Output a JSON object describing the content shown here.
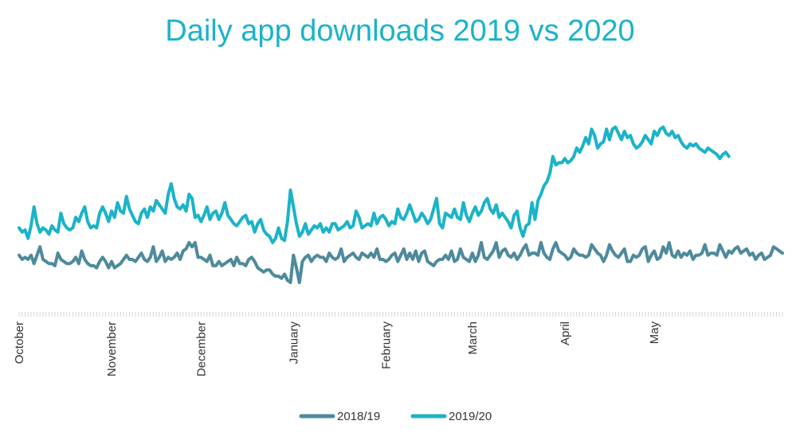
{
  "chart_data": {
    "type": "line",
    "title": "Daily app downloads 2019 vs 2020",
    "xlabel": "",
    "ylabel": "",
    "grid": false,
    "legend_position": "bottom-center",
    "x_axis": {
      "unit": "day",
      "tick_labels": [
        "October",
        "November",
        "December",
        "January",
        "February",
        "March",
        "April",
        "May"
      ],
      "tick_day_index": [
        0,
        31,
        61,
        92,
        123,
        152,
        183,
        213
      ]
    },
    "ylim": [
      0,
      100
    ],
    "series": [
      {
        "name": "2018/19",
        "color": "#4d8a9c",
        "values": [
          27,
          25,
          26,
          25,
          27,
          23,
          27,
          31,
          25,
          24,
          23,
          23,
          22,
          28,
          25,
          24,
          23,
          23,
          24,
          26,
          23,
          29,
          25,
          23,
          22,
          22,
          21,
          24,
          26,
          24,
          21,
          24,
          21,
          22,
          23,
          25,
          27,
          25,
          25,
          24,
          26,
          28,
          25,
          24,
          26,
          31,
          24,
          26,
          29,
          24,
          26,
          25,
          26,
          28,
          25,
          29,
          30,
          33,
          31,
          33,
          26,
          26,
          25,
          24,
          27,
          22,
          22,
          24,
          22,
          23,
          24,
          25,
          22,
          26,
          23,
          23,
          22,
          25,
          26,
          24,
          21,
          20,
          19,
          20,
          20,
          18,
          17,
          17,
          16,
          18,
          15,
          14,
          27,
          21,
          14,
          24,
          26,
          27,
          24,
          26,
          27,
          26,
          26,
          24,
          28,
          26,
          25,
          26,
          30,
          24,
          26,
          27,
          28,
          26,
          25,
          28,
          27,
          26,
          28,
          26,
          30,
          25,
          25,
          24,
          25,
          27,
          28,
          24,
          27,
          30,
          25,
          28,
          25,
          29,
          24,
          28,
          29,
          24,
          23,
          22,
          24,
          25,
          25,
          27,
          25,
          29,
          24,
          25,
          30,
          26,
          25,
          24,
          28,
          24,
          27,
          33,
          26,
          25,
          27,
          29,
          33,
          26,
          29,
          30,
          27,
          26,
          28,
          25,
          27,
          30,
          32,
          27,
          28,
          28,
          27,
          33,
          28,
          26,
          25,
          30,
          33,
          29,
          28,
          27,
          25,
          26,
          30,
          28,
          27,
          27,
          26,
          27,
          32,
          30,
          28,
          27,
          24,
          27,
          32,
          29,
          27,
          26,
          28,
          30,
          24,
          24,
          27,
          26,
          27,
          30,
          31,
          24,
          27,
          29,
          25,
          26,
          31,
          28,
          33,
          27,
          26,
          29,
          26,
          28,
          27,
          29,
          25,
          27,
          27,
          28,
          32,
          27,
          28,
          28,
          27,
          32,
          29,
          26,
          29,
          28,
          30,
          31,
          28,
          29,
          30,
          27,
          28,
          25,
          27,
          28,
          25,
          26,
          27,
          31,
          30,
          29,
          28
        ],
        "y_scale_note": "relative level read from the chart, 0 = axis baseline, 100 = peak height"
      },
      {
        "name": "2019/20",
        "color": "#1bb3c8",
        "values": [
          40,
          38,
          39,
          35,
          41,
          50,
          42,
          38,
          40,
          39,
          37,
          41,
          39,
          38,
          47,
          42,
          40,
          39,
          40,
          45,
          43,
          47,
          50,
          43,
          40,
          41,
          40,
          47,
          50,
          47,
          43,
          48,
          45,
          52,
          48,
          47,
          55,
          49,
          46,
          43,
          42,
          47,
          49,
          45,
          50,
          48,
          53,
          51,
          49,
          47,
          56,
          61,
          54,
          50,
          49,
          51,
          48,
          56,
          54,
          45,
          46,
          43,
          46,
          50,
          44,
          47,
          48,
          44,
          47,
          52,
          46,
          44,
          42,
          41,
          43,
          45,
          46,
          42,
          43,
          38,
          42,
          44,
          39,
          37,
          36,
          33,
          35,
          40,
          35,
          34,
          43,
          58,
          50,
          42,
          36,
          38,
          42,
          37,
          39,
          41,
          40,
          42,
          38,
          40,
          38,
          42,
          42,
          39,
          40,
          41,
          43,
          40,
          41,
          48,
          45,
          40,
          41,
          42,
          41,
          47,
          42,
          45,
          46,
          44,
          41,
          43,
          42,
          49,
          45,
          44,
          47,
          51,
          47,
          43,
          44,
          47,
          45,
          42,
          44,
          49,
          54,
          42,
          40,
          47,
          46,
          45,
          49,
          45,
          44,
          52,
          46,
          43,
          47,
          50,
          46,
          48,
          52,
          54,
          49,
          47,
          51,
          45,
          47,
          45,
          43,
          40,
          46,
          48,
          40,
          36,
          41,
          42,
          52,
          44,
          53,
          56,
          60,
          62,
          66,
          74,
          70,
          71,
          71,
          73,
          71,
          72,
          74,
          78,
          76,
          79,
          83,
          80,
          87,
          84,
          78,
          80,
          81,
          87,
          82,
          87,
          88,
          85,
          82,
          86,
          83,
          84,
          80,
          78,
          79,
          81,
          84,
          82,
          80,
          86,
          84,
          87,
          88,
          85,
          84,
          86,
          83,
          84,
          81,
          79,
          78,
          80,
          79,
          80,
          78,
          77,
          76,
          78,
          77,
          76,
          75,
          73,
          75,
          76,
          74
        ]
      }
    ]
  },
  "legend": [
    {
      "label": "2018/19",
      "color": "#4d8a9c"
    },
    {
      "label": "2019/20",
      "color": "#1bb3c8"
    }
  ]
}
